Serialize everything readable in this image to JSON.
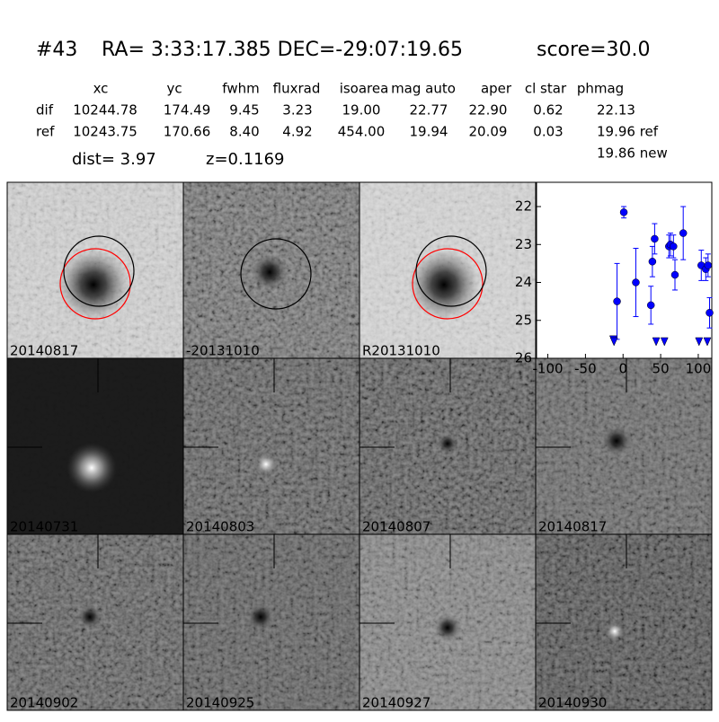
{
  "header": {
    "id": "#43",
    "coords": "RA= 3:33:17.385 DEC=-29:07:19.65",
    "score": "score=30.0"
  },
  "table": {
    "columns": [
      "xc",
      "yc",
      "fwhm",
      "fluxrad",
      "isoarea",
      "mag auto",
      "aper",
      "cl star",
      "phmag"
    ],
    "rows": [
      [
        "dif",
        "10244.78",
        "174.49",
        "9.45",
        "3.23",
        "19.00",
        "22.77",
        "22.90",
        "0.62",
        "22.13"
      ],
      [
        "ref",
        "10243.75",
        "170.66",
        "8.40",
        "4.92",
        "454.00",
        "19.94",
        "20.09",
        "0.03",
        "19.96 ref"
      ]
    ],
    "extra": "19.86 new"
  },
  "dist": "dist=  3.97",
  "z": "z=0.1169",
  "panels": [
    {
      "label": "20140817",
      "color": "#000000"
    },
    {
      "label": "-20131010",
      "color": "#000000"
    },
    {
      "label": "R20131010",
      "color": "#000000"
    },
    {
      "label": "20140731",
      "color": "#000000"
    },
    {
      "label": "20140803",
      "color": "#000000"
    },
    {
      "label": "20140807",
      "color": "#000000"
    },
    {
      "label": "20140817",
      "color": "#ff0000"
    },
    {
      "label": "20140902",
      "color": "#000000"
    },
    {
      "label": "20140925",
      "color": "#000000"
    },
    {
      "label": "20140927",
      "color": "#000000"
    },
    {
      "label": "20140930",
      "color": "#000000"
    }
  ],
  "chart_data": {
    "type": "errorbar",
    "xlim": [
      -115,
      118
    ],
    "ylim": [
      26,
      21.36
    ],
    "xticks": [
      -100,
      -50,
      0,
      50,
      100
    ],
    "yticks": [
      22,
      23,
      24,
      25,
      26
    ],
    "series": [
      {
        "color": "#0000ff",
        "marker": "circle",
        "x": [
          -8,
          1,
          17,
          37,
          39,
          42,
          61,
          63,
          67,
          69,
          80,
          104,
          110,
          113,
          115
        ],
        "values": [
          24.5,
          22.15,
          24.0,
          24.6,
          23.45,
          22.85,
          23.05,
          23.0,
          23.05,
          23.8,
          22.7,
          23.55,
          23.65,
          23.55,
          24.8
        ],
        "errors": [
          1.0,
          0.15,
          0.9,
          0.5,
          0.4,
          0.4,
          0.3,
          0.3,
          0.3,
          0.4,
          0.7,
          0.4,
          0.3,
          0.3,
          0.4
        ]
      },
      {
        "color": "#0000ff",
        "marker": "triangle-down",
        "x": [
          -13,
          -12,
          44,
          55,
          101,
          112
        ],
        "values": [
          25.5,
          25.55,
          25.55,
          25.55,
          25.55,
          25.55
        ]
      }
    ]
  }
}
